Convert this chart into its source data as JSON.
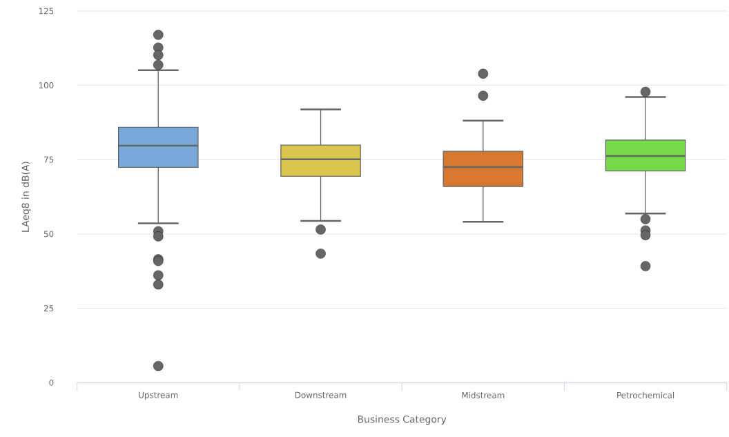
{
  "chart_data": {
    "type": "box",
    "xlabel": "Business Category",
    "ylabel": "LAeq8 in dB(A)",
    "categories": [
      "Upstream",
      "Downstream",
      "Midstream",
      "Petrochemical"
    ],
    "colors": [
      "#77a8d9",
      "#dcc54f",
      "#d67831",
      "#76d948"
    ],
    "boxes": [
      {
        "low": 53.6,
        "q1": 72.4,
        "median": 79.7,
        "q3": 85.9,
        "high": 105.1,
        "outliers": [
          117,
          112.7,
          110.2,
          106.9,
          50.9,
          49.2,
          41.5,
          40.9,
          36.1,
          33.0,
          5.6
        ]
      },
      {
        "low": 54.4,
        "q1": 69.4,
        "median": 75.1,
        "q3": 79.9,
        "high": 91.9,
        "outliers": [
          51.5,
          43.4
        ]
      },
      {
        "low": 54.1,
        "q1": 66.0,
        "median": 72.5,
        "q3": 77.8,
        "high": 88.1,
        "outliers": [
          103.9,
          96.5
        ]
      },
      {
        "low": 56.9,
        "q1": 71.2,
        "median": 76.2,
        "q3": 81.6,
        "high": 96.1,
        "outliers": [
          97.8,
          55.0,
          51.2,
          49.6,
          39.2
        ]
      }
    ],
    "ylim": [
      0,
      125
    ],
    "yticks": [
      0,
      25,
      50,
      75,
      100,
      125
    ],
    "grid": "y"
  }
}
